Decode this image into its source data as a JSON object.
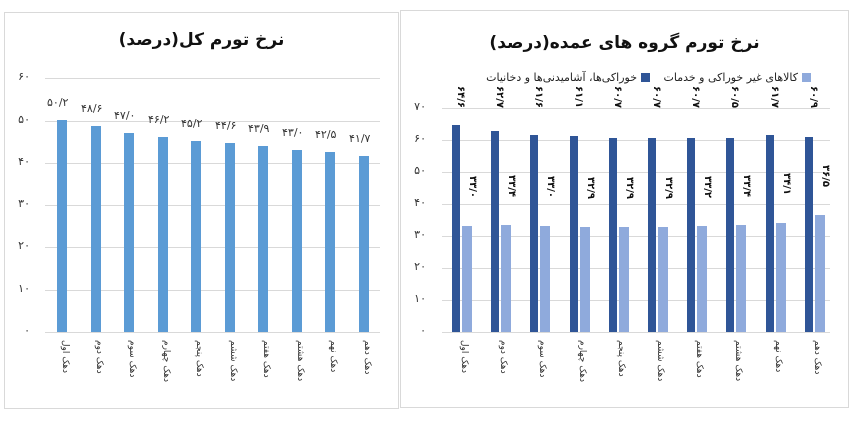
{
  "chart_data": [
    {
      "type": "bar",
      "title": "نرخ تورم کل(درصد)",
      "xlabel": "",
      "ylabel": "",
      "ylim": [
        0,
        60
      ],
      "yticks": [
        "۰",
        "۱۰",
        "۲۰",
        "۳۰",
        "۴۰",
        "۵۰",
        "۶۰"
      ],
      "grid": true,
      "legend": "none",
      "categories": [
        "دهک اول",
        "دهک دوم",
        "دهک سوم",
        "دهک چهارم",
        "دهک پنجم",
        "دهک ششم",
        "دهک هفتم",
        "دهک هشتم",
        "دهک نهم",
        "دهک دهم"
      ],
      "values": [
        50.2,
        48.6,
        47.0,
        46.2,
        45.2,
        44.6,
        43.9,
        43.0,
        42.5,
        41.7
      ],
      "value_labels": [
        "۵۰/۲",
        "۴۸/۶",
        "۴۷/۰",
        "۴۶/۲",
        "۴۵/۲",
        "۴۴/۶",
        "۴۳/۹",
        "۴۳/۰",
        "۴۲/۵",
        "۴۱/۷"
      ],
      "color": "#5b9bd5"
    },
    {
      "type": "bar",
      "title": "نرخ تورم گروه های عمده(درصد)",
      "xlabel": "",
      "ylabel": "",
      "ylim": [
        0,
        70
      ],
      "yticks": [
        "۰",
        "۱۰",
        "۲۰",
        "۳۰",
        "۴۰",
        "۵۰",
        "۶۰",
        "۷۰"
      ],
      "grid": true,
      "legend": "top",
      "categories": [
        "دهک اول",
        "دهک دوم",
        "دهک سوم",
        "دهک چهارم",
        "دهک پنجم",
        "دهک ششم",
        "دهک هفتم",
        "دهک هشتم",
        "دهک نهم",
        "دهک دهم"
      ],
      "series": [
        {
          "name": "خوراکی‌ها، آشامیدنی‌ها و دخانیات",
          "color": "#2f5597",
          "values": [
            64.6,
            62.7,
            61.6,
            61.1,
            60.7,
            60.7,
            60.7,
            60.5,
            61.7,
            60.9
          ],
          "value_labels": [
            "۶۴/۶",
            "۶۲/۷",
            "۶۱/۶",
            "۶۱/۱",
            "۶۰/۷",
            "۶۰/۷",
            "۶۰/۷",
            "۶۰/۵",
            "۶۱/۷",
            "۶۰/۹"
          ]
        },
        {
          "name": "کالاهای غیر خوراکی و خدمات",
          "color": "#8faadc",
          "values": [
            33.0,
            33.4,
            33.0,
            32.9,
            32.9,
            32.9,
            33.2,
            33.4,
            34.1,
            36.5
          ],
          "value_labels": [
            "۳۳/۰",
            "۳۳/۴",
            "۳۳/۰",
            "۳۲/۹",
            "۳۲/۹",
            "۳۲/۹",
            "۳۳/۲",
            "۳۳/۴",
            "۳۴/۱",
            "۳۶/۵"
          ]
        }
      ]
    }
  ]
}
